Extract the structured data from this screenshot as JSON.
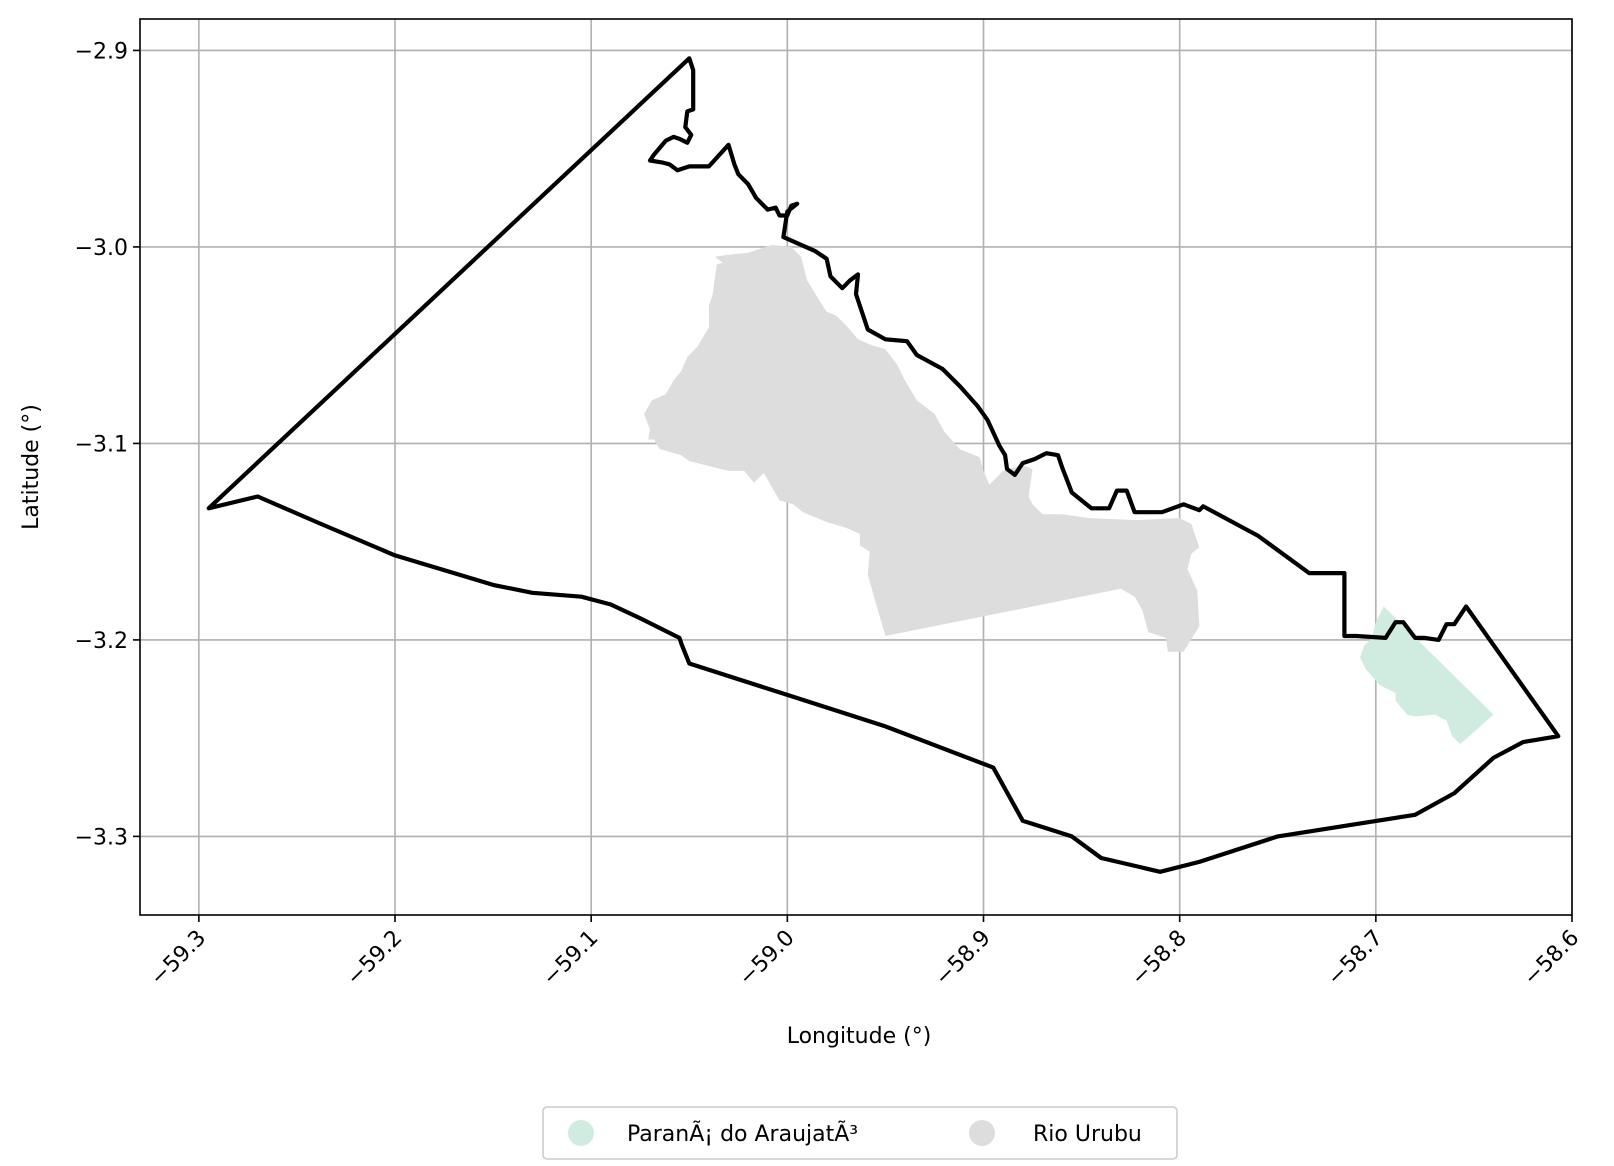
{
  "map": {
    "x_label": "Longitude (°)",
    "y_label": "Latitude (°)",
    "x_ticks": [
      {
        "value": -59.3,
        "label": "−59.3"
      },
      {
        "value": -59.2,
        "label": "−59.2"
      },
      {
        "value": -59.1,
        "label": "−59.1"
      },
      {
        "value": -59.0,
        "label": "−59.0"
      },
      {
        "value": -58.9,
        "label": "−58.9"
      },
      {
        "value": -58.8,
        "label": "−58.8"
      },
      {
        "value": -58.7,
        "label": "−58.7"
      },
      {
        "value": -58.6,
        "label": "−58.6"
      }
    ],
    "y_ticks": [
      {
        "value": -2.9,
        "label": "−2.9"
      },
      {
        "value": -3.0,
        "label": "−3.0"
      },
      {
        "value": -3.1,
        "label": "−3.1"
      },
      {
        "value": -3.2,
        "label": "−3.2"
      },
      {
        "value": -3.3,
        "label": "−3.3"
      }
    ],
    "x_range": [
      -59.33,
      -58.6
    ],
    "y_range": [
      -3.34,
      -2.884
    ],
    "grid": true,
    "legend_position": "bottom-center",
    "boundary_color": "#000000",
    "legend": [
      {
        "label": "ParanÃ¡ do AraujatÃ³",
        "color": "#d0ebe0"
      },
      {
        "label": "Rio Urubu",
        "color": "#dddddd"
      }
    ],
    "regions": [
      {
        "name": "Rio Urubu",
        "color": "#dddddd",
        "outline": [
          [
            -59.037,
            -3.005
          ],
          [
            -59.033,
            -3.008
          ],
          [
            -59.036,
            -3.009
          ],
          [
            -59.038,
            -3.024
          ],
          [
            -59.04,
            -3.03
          ],
          [
            -59.04,
            -3.041
          ],
          [
            -59.046,
            -3.051
          ],
          [
            -59.051,
            -3.056
          ],
          [
            -59.054,
            -3.063
          ],
          [
            -59.058,
            -3.068
          ],
          [
            -59.062,
            -3.075
          ],
          [
            -59.069,
            -3.078
          ],
          [
            -59.073,
            -3.085
          ],
          [
            -59.07,
            -3.093
          ],
          [
            -59.071,
            -3.098
          ],
          [
            -59.068,
            -3.098
          ],
          [
            -59.065,
            -3.103
          ],
          [
            -59.054,
            -3.106
          ],
          [
            -59.05,
            -3.109
          ],
          [
            -59.03,
            -3.114
          ],
          [
            -59.022,
            -3.114
          ],
          [
            -59.017,
            -3.12
          ],
          [
            -59.012,
            -3.115
          ],
          [
            -59.008,
            -3.122
          ],
          [
            -59.004,
            -3.129
          ],
          [
            -58.997,
            -3.131
          ],
          [
            -58.992,
            -3.135
          ],
          [
            -58.98,
            -3.14
          ],
          [
            -58.97,
            -3.143
          ],
          [
            -58.963,
            -3.146
          ],
          [
            -58.963,
            -3.152
          ],
          [
            -58.958,
            -3.155
          ],
          [
            -58.959,
            -3.167
          ],
          [
            -58.95,
            -3.198
          ],
          [
            -58.83,
            -3.174
          ],
          [
            -58.823,
            -3.178
          ],
          [
            -58.819,
            -3.185
          ],
          [
            -58.816,
            -3.196
          ],
          [
            -58.807,
            -3.199
          ],
          [
            -58.806,
            -3.206
          ],
          [
            -58.798,
            -3.206
          ],
          [
            -58.79,
            -3.193
          ],
          [
            -58.791,
            -3.175
          ],
          [
            -58.796,
            -3.164
          ],
          [
            -58.794,
            -3.156
          ],
          [
            -58.79,
            -3.153
          ],
          [
            -58.794,
            -3.141
          ],
          [
            -58.8,
            -3.138
          ],
          [
            -58.822,
            -3.139
          ],
          [
            -58.846,
            -3.138
          ],
          [
            -58.86,
            -3.136
          ],
          [
            -58.87,
            -3.136
          ],
          [
            -58.875,
            -3.131
          ],
          [
            -58.877,
            -3.127
          ],
          [
            -58.875,
            -3.113
          ],
          [
            -58.88,
            -3.111
          ],
          [
            -58.89,
            -3.114
          ],
          [
            -58.897,
            -3.121
          ],
          [
            -58.9,
            -3.114
          ],
          [
            -58.902,
            -3.107
          ],
          [
            -58.912,
            -3.103
          ],
          [
            -58.92,
            -3.094
          ],
          [
            -58.925,
            -3.085
          ],
          [
            -58.934,
            -3.078
          ],
          [
            -58.94,
            -3.068
          ],
          [
            -58.944,
            -3.06
          ],
          [
            -58.95,
            -3.052
          ],
          [
            -58.957,
            -3.05
          ],
          [
            -58.964,
            -3.047
          ],
          [
            -58.97,
            -3.04
          ],
          [
            -58.975,
            -3.035
          ],
          [
            -58.98,
            -3.033
          ],
          [
            -58.985,
            -3.025
          ],
          [
            -58.99,
            -3.017
          ],
          [
            -58.993,
            -3.005
          ],
          [
            -58.998,
            -3.0
          ],
          [
            -59.008,
            -2.999
          ],
          [
            -59.02,
            -3.003
          ],
          [
            -59.03,
            -3.004
          ]
        ]
      },
      {
        "name": "ParanÃ¡ do AraujatÃ³",
        "color": "#d0ebe0",
        "outline": [
          [
            -58.696,
            -3.183
          ],
          [
            -58.64,
            -3.238
          ],
          [
            -58.657,
            -3.253
          ],
          [
            -58.661,
            -3.249
          ],
          [
            -58.664,
            -3.241
          ],
          [
            -58.67,
            -3.238
          ],
          [
            -58.68,
            -3.239
          ],
          [
            -58.684,
            -3.238
          ],
          [
            -58.69,
            -3.231
          ],
          [
            -58.69,
            -3.227
          ],
          [
            -58.696,
            -3.224
          ],
          [
            -58.698,
            -3.223
          ],
          [
            -58.705,
            -3.215
          ],
          [
            -58.708,
            -3.209
          ],
          [
            -58.706,
            -3.203
          ],
          [
            -58.702,
            -3.199
          ],
          [
            -58.7,
            -3.191
          ]
        ]
      }
    ],
    "boundary": [
      [
        -59.295,
        -3.133
      ],
      [
        -59.05,
        -2.904
      ],
      [
        -59.048,
        -2.91
      ],
      [
        -59.048,
        -2.93
      ],
      [
        -59.051,
        -2.931
      ],
      [
        -59.052,
        -2.939
      ],
      [
        -59.049,
        -2.943
      ],
      [
        -59.051,
        -2.947
      ],
      [
        -59.055,
        -2.945
      ],
      [
        -59.058,
        -2.944
      ],
      [
        -59.062,
        -2.946
      ],
      [
        -59.068,
        -2.953
      ],
      [
        -59.07,
        -2.956
      ],
      [
        -59.064,
        -2.957
      ],
      [
        -59.06,
        -2.958
      ],
      [
        -59.056,
        -2.961
      ],
      [
        -59.05,
        -2.959
      ],
      [
        -59.04,
        -2.959
      ],
      [
        -59.03,
        -2.948
      ],
      [
        -59.027,
        -2.958
      ],
      [
        -59.025,
        -2.963
      ],
      [
        -59.02,
        -2.968
      ],
      [
        -59.016,
        -2.975
      ],
      [
        -59.01,
        -2.981
      ],
      [
        -59.006,
        -2.98
      ],
      [
        -59.004,
        -2.984
      ],
      [
        -59.0,
        -2.984
      ],
      [
        -58.998,
        -2.979
      ],
      [
        -58.995,
        -2.978
      ],
      [
        -59.0,
        -2.982
      ],
      [
        -59.002,
        -2.995
      ],
      [
        -58.986,
        -3.002
      ],
      [
        -58.98,
        -3.006
      ],
      [
        -58.978,
        -3.015
      ],
      [
        -58.975,
        -3.018
      ],
      [
        -58.972,
        -3.021
      ],
      [
        -58.968,
        -3.017
      ],
      [
        -58.964,
        -3.014
      ],
      [
        -58.965,
        -3.024
      ],
      [
        -58.963,
        -3.03
      ],
      [
        -58.959,
        -3.042
      ],
      [
        -58.95,
        -3.047
      ],
      [
        -58.939,
        -3.048
      ],
      [
        -58.934,
        -3.055
      ],
      [
        -58.921,
        -3.062
      ],
      [
        -58.912,
        -3.071
      ],
      [
        -58.903,
        -3.081
      ],
      [
        -58.898,
        -3.088
      ],
      [
        -58.892,
        -3.101
      ],
      [
        -58.889,
        -3.106
      ],
      [
        -58.888,
        -3.113
      ],
      [
        -58.884,
        -3.116
      ],
      [
        -58.88,
        -3.11
      ],
      [
        -58.874,
        -3.108
      ],
      [
        -58.868,
        -3.105
      ],
      [
        -58.862,
        -3.106
      ],
      [
        -58.86,
        -3.112
      ],
      [
        -58.855,
        -3.125
      ],
      [
        -58.845,
        -3.133
      ],
      [
        -58.836,
        -3.133
      ],
      [
        -58.832,
        -3.124
      ],
      [
        -58.827,
        -3.124
      ],
      [
        -58.823,
        -3.135
      ],
      [
        -58.809,
        -3.135
      ],
      [
        -58.798,
        -3.131
      ],
      [
        -58.79,
        -3.134
      ],
      [
        -58.788,
        -3.132
      ],
      [
        -58.76,
        -3.147
      ],
      [
        -58.734,
        -3.166
      ],
      [
        -58.716,
        -3.166
      ],
      [
        -58.716,
        -3.198
      ],
      [
        -58.71,
        -3.198
      ],
      [
        -58.695,
        -3.199
      ],
      [
        -58.69,
        -3.191
      ],
      [
        -58.686,
        -3.191
      ],
      [
        -58.68,
        -3.199
      ],
      [
        -58.675,
        -3.199
      ],
      [
        -58.668,
        -3.2
      ],
      [
        -58.664,
        -3.192
      ],
      [
        -58.66,
        -3.192
      ],
      [
        -58.654,
        -3.183
      ],
      [
        -58.607,
        -3.249
      ],
      [
        -58.625,
        -3.252
      ],
      [
        -58.64,
        -3.26
      ],
      [
        -58.66,
        -3.278
      ],
      [
        -58.68,
        -3.289
      ],
      [
        -58.75,
        -3.3
      ],
      [
        -58.79,
        -3.313
      ],
      [
        -58.81,
        -3.318
      ],
      [
        -58.84,
        -3.311
      ],
      [
        -58.855,
        -3.3
      ],
      [
        -58.88,
        -3.292
      ],
      [
        -58.895,
        -3.265
      ],
      [
        -58.95,
        -3.244
      ],
      [
        -59.0,
        -3.228
      ],
      [
        -59.05,
        -3.212
      ],
      [
        -59.054,
        -3.202
      ],
      [
        -59.055,
        -3.199
      ],
      [
        -59.075,
        -3.189
      ],
      [
        -59.09,
        -3.182
      ],
      [
        -59.105,
        -3.178
      ],
      [
        -59.13,
        -3.176
      ],
      [
        -59.15,
        -3.172
      ],
      [
        -59.2,
        -3.157
      ],
      [
        -59.24,
        -3.14
      ],
      [
        -59.27,
        -3.127
      ],
      [
        -59.295,
        -3.133
      ]
    ]
  }
}
